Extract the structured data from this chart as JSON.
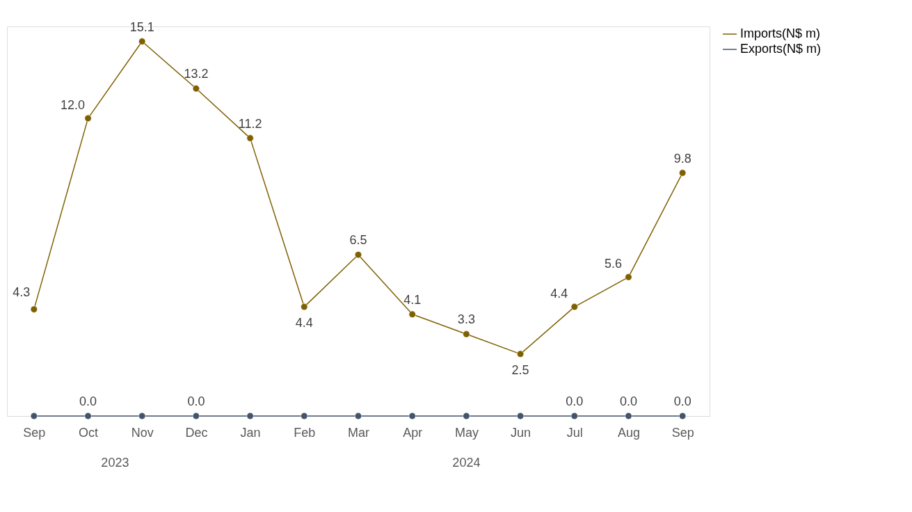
{
  "chart_data": {
    "type": "line",
    "categories": [
      "Sep",
      "Oct",
      "Nov",
      "Dec",
      "Jan",
      "Feb",
      "Mar",
      "Apr",
      "May",
      "Jun",
      "Jul",
      "Aug",
      "Sep"
    ],
    "series": [
      {
        "name": "Imports(N$ m)",
        "color": "#7f6000",
        "values": [
          4.3,
          12.0,
          15.1,
          13.2,
          11.2,
          4.4,
          6.5,
          4.1,
          3.3,
          2.5,
          4.4,
          5.6,
          9.8
        ],
        "value_labels": [
          "4.3",
          "12.0",
          "15.1",
          "13.2",
          "11.2",
          "4.4",
          "6.5",
          "4.1",
          "3.3",
          "2.5",
          "4.4",
          "5.6",
          "9.8"
        ]
      },
      {
        "name": "Exports(N$ m)",
        "color": "#44546a",
        "values": [
          0.0,
          0.0,
          0.0,
          0.0,
          0.0,
          0.0,
          0.0,
          0.0,
          0.0,
          0.0,
          0.0,
          0.0,
          0.0
        ],
        "value_labels": [
          null,
          "0.0",
          null,
          "0.0",
          null,
          null,
          null,
          null,
          null,
          null,
          "0.0",
          "0.0",
          "0.0"
        ]
      }
    ],
    "annotations": [
      "2023",
      "2024"
    ],
    "marker": "circle",
    "line_style": "solid",
    "grid": false,
    "legend": "right",
    "tick_labels": "x"
  }
}
